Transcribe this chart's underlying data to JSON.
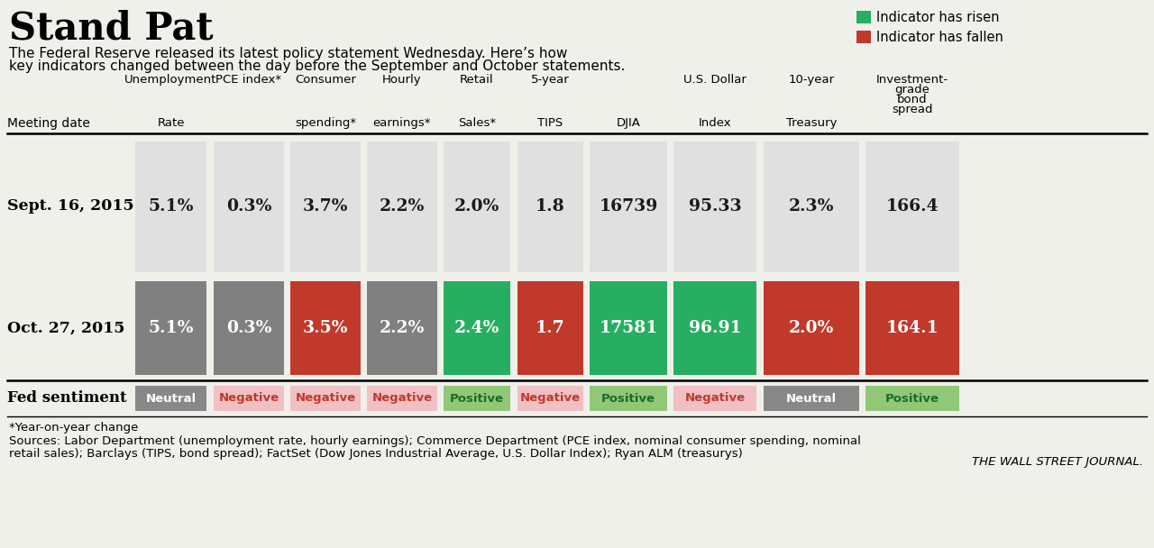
{
  "title": "Stand Pat",
  "subtitle1": "The Federal Reserve released its latest policy statement Wednesday. Here’s how",
  "subtitle2": "key indicators changed between the day before the September and October statements.",
  "legend_risen": "Indicator has risen",
  "legend_fallen": "Indicator has fallen",
  "row_label": "Meeting date",
  "col_headers": [
    [
      "Unemployment",
      "Rate"
    ],
    [
      "PCE index*",
      ""
    ],
    [
      "Consumer",
      "spending*"
    ],
    [
      "Hourly",
      "earnings*"
    ],
    [
      "Retail",
      "Sales*"
    ],
    [
      "5-year",
      "TIPS"
    ],
    [
      "",
      "DJIA"
    ],
    [
      "U.S. Dollar",
      "Index"
    ],
    [
      "10-year",
      "Treasury"
    ],
    [
      "Investment-",
      "grade bond spread"
    ]
  ],
  "row1_date": "Sept. 16, 2015",
  "row1_values": [
    "5.1%",
    "0.3%",
    "3.7%",
    "2.2%",
    "2.0%",
    "1.8",
    "16739",
    "95.33",
    "2.3%",
    "166.4"
  ],
  "row2_date": "Oct. 27, 2015",
  "row2_values": [
    "5.1%",
    "0.3%",
    "3.5%",
    "2.2%",
    "2.4%",
    "1.7",
    "17581",
    "96.91",
    "2.0%",
    "164.1"
  ],
  "row2_colors": [
    "#808080",
    "#808080",
    "#c0392b",
    "#808080",
    "#27ae60",
    "#c0392b",
    "#27ae60",
    "#27ae60",
    "#c0392b",
    "#c0392b"
  ],
  "sentiments": [
    "Neutral",
    "Negative",
    "Negative",
    "Negative",
    "Positive",
    "Negative",
    "Positive",
    "Negative",
    "Neutral",
    "Positive"
  ],
  "sentiment_bg_colors": [
    "#888888",
    "#f0c0c4",
    "#f0c0c4",
    "#f0c0c4",
    "#90c878",
    "#f0c0c4",
    "#90c878",
    "#f0c0c4",
    "#888888",
    "#90c878"
  ],
  "sentiment_text_colors": [
    "#ffffff",
    "#c0392b",
    "#c0392b",
    "#c0392b",
    "#1a6b2a",
    "#c0392b",
    "#1a6b2a",
    "#c0392b",
    "#ffffff",
    "#1a6b2a"
  ],
  "footnote1": "*Year-on-year change",
  "footnote2": "Sources: Labor Department (unemployment rate, hourly earnings); Commerce Department (PCE index, nominal consumer spending, nominal",
  "footnote3": "retail sales); Barclays (TIPS, bond spread); FactSet (Dow Jones Industrial Average, U.S. Dollar Index); Ryan ALM (treasurys)",
  "source": "THE WALL STREET JOURNAL.",
  "color_risen": "#27ae60",
  "color_fallen": "#c0392b",
  "color_neutral_dark": "#888888",
  "cell_bg_color": "#e0e0e0",
  "bg_color": "#f0f0eb"
}
